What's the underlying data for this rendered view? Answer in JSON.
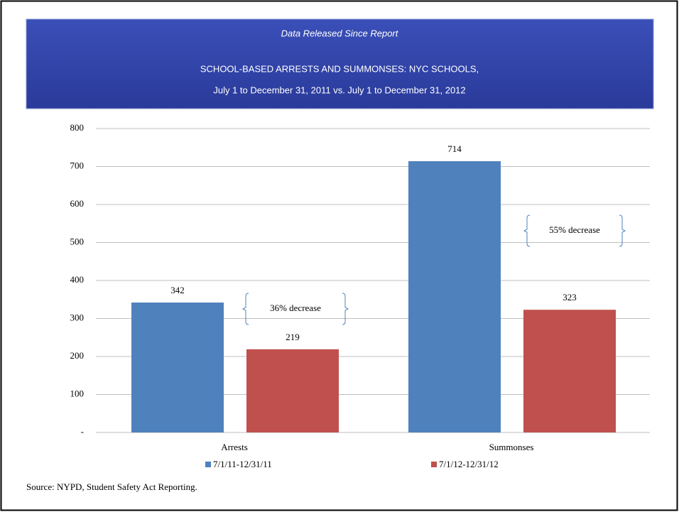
{
  "chart_data": {
    "type": "bar",
    "header": "Data Released Since Report",
    "title_lines": [
      "SCHOOL-BASED ARRESTS AND SUMMONSES: NYC SCHOOLS,",
      "July 1 to December 31, 2011 vs. July 1 to December 31, 2012"
    ],
    "categories": [
      "Arrests",
      "Summonses"
    ],
    "series": [
      {
        "name": "7/1/11-12/31/11",
        "color": "#4f81bd",
        "values": [
          342,
          714
        ]
      },
      {
        "name": "7/1/12-12/31/12",
        "color": "#c0504d",
        "values": [
          219,
          323
        ]
      }
    ],
    "annotations": [
      "36% decrease",
      "55% decrease"
    ],
    "ylim": [
      0,
      800
    ],
    "yticks": [
      {
        "value": 0,
        "label": "-"
      },
      100,
      200,
      300,
      400,
      500,
      600,
      700,
      800
    ],
    "grid": true,
    "legend": "bottom",
    "source": "Source: NYPD, Student Safety Act Reporting."
  }
}
